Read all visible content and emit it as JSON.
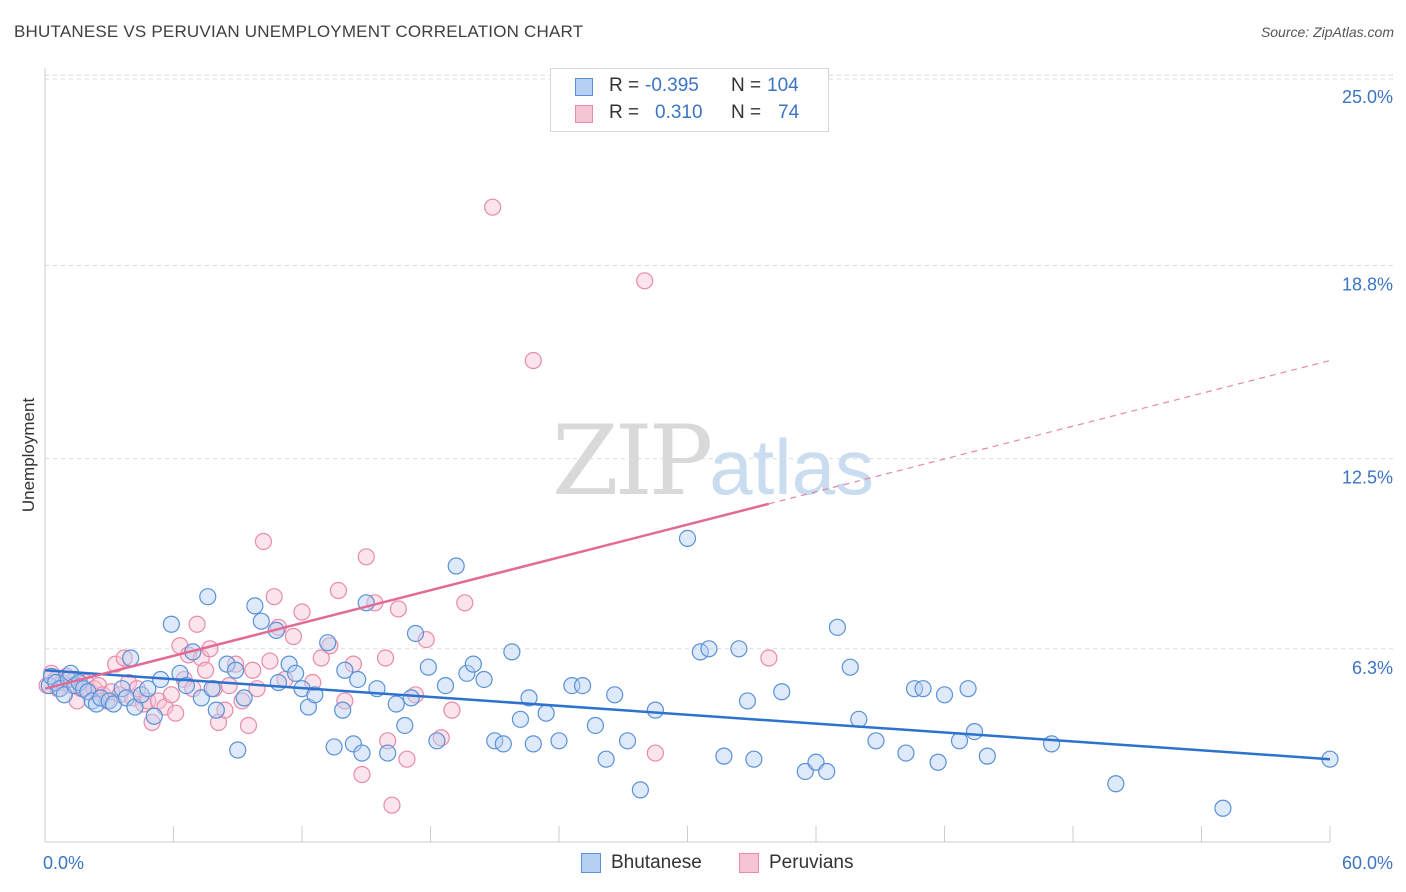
{
  "title": "BHUTANESE VS PERUVIAN UNEMPLOYMENT CORRELATION CHART",
  "source": "Source: ZipAtlas.com",
  "watermark": {
    "zip": "ZIP",
    "atlas": "atlas"
  },
  "legend": {
    "rows": [
      {
        "r_label": "R =",
        "r_value": "-0.395",
        "n_label": "N =",
        "n_value": "104"
      },
      {
        "r_label": "R =",
        "r_value": "0.310",
        "n_label": "N =",
        "n_value": "74"
      }
    ]
  },
  "bottom_legend": [
    "Bhutanese",
    "Peruvians"
  ],
  "colors": {
    "blue_fill": "#b5d0f2",
    "blue_stroke": "#5a91d8",
    "blue_line": "#2d72cc",
    "pink_fill": "#f7c4d4",
    "pink_stroke": "#e98aab",
    "pink_line": "#e36a94",
    "grid": "#dcdcdc",
    "tick_text": "#3b74c4"
  },
  "chart_data": {
    "type": "scatter",
    "title": "BHUTANESE VS PERUVIAN UNEMPLOYMENT CORRELATION CHART",
    "xlabel": "",
    "ylabel": "Unemployment",
    "xlim": [
      0,
      60
    ],
    "ylim": [
      0,
      25.5
    ],
    "x_tick_labels": [
      "0.0%",
      "60.0%"
    ],
    "y_ticks": [
      6.3,
      12.5,
      18.8,
      25.0
    ],
    "y_tick_labels": [
      "6.3%",
      "12.5%",
      "18.8%",
      "25.0%"
    ],
    "grid": "horizontal dashed",
    "legend_position": "top-center",
    "series": [
      {
        "name": "Bhutanese",
        "r": -0.395,
        "n": 104,
        "trend": {
          "x": [
            0,
            60
          ],
          "y": [
            5.6,
            2.7
          ],
          "dashed_from": null
        },
        "points": [
          [
            0.2,
            5.1
          ],
          [
            0.3,
            5.4
          ],
          [
            0.5,
            5.2
          ],
          [
            0.7,
            5.0
          ],
          [
            0.9,
            4.8
          ],
          [
            1.1,
            5.3
          ],
          [
            1.2,
            5.5
          ],
          [
            1.4,
            5.1
          ],
          [
            1.6,
            5.2
          ],
          [
            1.8,
            5.0
          ],
          [
            2.0,
            4.9
          ],
          [
            2.2,
            4.6
          ],
          [
            2.4,
            4.5
          ],
          [
            2.6,
            4.7
          ],
          [
            3.0,
            4.6
          ],
          [
            3.2,
            4.5
          ],
          [
            3.6,
            5.0
          ],
          [
            3.8,
            4.7
          ],
          [
            4.0,
            6.0
          ],
          [
            4.2,
            4.4
          ],
          [
            4.5,
            4.8
          ],
          [
            4.8,
            5.0
          ],
          [
            5.1,
            4.1
          ],
          [
            5.4,
            5.3
          ],
          [
            5.9,
            7.1
          ],
          [
            6.3,
            5.5
          ],
          [
            6.6,
            5.1
          ],
          [
            6.9,
            6.2
          ],
          [
            7.3,
            4.7
          ],
          [
            7.6,
            8.0
          ],
          [
            7.8,
            5.0
          ],
          [
            8.0,
            4.3
          ],
          [
            8.5,
            5.8
          ],
          [
            8.9,
            5.6
          ],
          [
            9.0,
            3.0
          ],
          [
            9.3,
            4.7
          ],
          [
            9.8,
            7.7
          ],
          [
            10.1,
            7.2
          ],
          [
            10.8,
            6.9
          ],
          [
            10.9,
            5.2
          ],
          [
            11.4,
            5.8
          ],
          [
            11.7,
            5.5
          ],
          [
            12.0,
            5.0
          ],
          [
            12.3,
            4.4
          ],
          [
            12.6,
            4.8
          ],
          [
            13.2,
            6.5
          ],
          [
            13.5,
            3.1
          ],
          [
            13.9,
            4.3
          ],
          [
            14.0,
            5.6
          ],
          [
            14.4,
            3.2
          ],
          [
            14.6,
            5.3
          ],
          [
            14.8,
            2.9
          ],
          [
            15.0,
            7.8
          ],
          [
            15.5,
            5.0
          ],
          [
            16.0,
            2.9
          ],
          [
            16.4,
            4.5
          ],
          [
            16.8,
            3.8
          ],
          [
            17.1,
            4.7
          ],
          [
            17.3,
            6.8
          ],
          [
            17.9,
            5.7
          ],
          [
            18.3,
            3.3
          ],
          [
            18.7,
            5.1
          ],
          [
            19.2,
            9.0
          ],
          [
            19.7,
            5.5
          ],
          [
            20.0,
            5.8
          ],
          [
            20.5,
            5.3
          ],
          [
            21.0,
            3.3
          ],
          [
            21.4,
            3.2
          ],
          [
            21.8,
            6.2
          ],
          [
            22.2,
            4.0
          ],
          [
            22.6,
            4.7
          ],
          [
            22.8,
            3.2
          ],
          [
            23.4,
            4.2
          ],
          [
            24.0,
            3.3
          ],
          [
            24.6,
            5.1
          ],
          [
            25.1,
            5.1
          ],
          [
            25.7,
            3.8
          ],
          [
            26.2,
            2.7
          ],
          [
            26.6,
            4.8
          ],
          [
            27.2,
            3.3
          ],
          [
            27.8,
            1.7
          ],
          [
            28.5,
            4.3
          ],
          [
            30.0,
            9.9
          ],
          [
            30.6,
            6.2
          ],
          [
            31.0,
            6.3
          ],
          [
            31.7,
            2.8
          ],
          [
            32.4,
            6.3
          ],
          [
            32.8,
            4.6
          ],
          [
            33.1,
            2.7
          ],
          [
            34.4,
            4.9
          ],
          [
            35.5,
            2.3
          ],
          [
            36.0,
            2.6
          ],
          [
            36.5,
            2.3
          ],
          [
            37.0,
            7.0
          ],
          [
            37.6,
            5.7
          ],
          [
            38.0,
            4.0
          ],
          [
            38.8,
            3.3
          ],
          [
            40.2,
            2.9
          ],
          [
            40.6,
            5.0
          ],
          [
            41.0,
            5.0
          ],
          [
            41.7,
            2.6
          ],
          [
            42.0,
            4.8
          ],
          [
            42.7,
            3.3
          ],
          [
            43.4,
            3.6
          ]
        ],
        "points_extra": [
          [
            43.1,
            5.0
          ],
          [
            44.0,
            2.8
          ],
          [
            47.0,
            3.2
          ],
          [
            50.0,
            1.9
          ],
          [
            55.0,
            1.1
          ],
          [
            60.0,
            2.7
          ]
        ]
      },
      {
        "name": "Peruvians",
        "r": 0.31,
        "n": 74,
        "trend": {
          "x": [
            0,
            60
          ],
          "y": [
            5.0,
            15.7
          ],
          "solid_until_x": 33.8
        },
        "points": [
          [
            0.1,
            5.1
          ],
          [
            0.3,
            5.5
          ],
          [
            0.5,
            5.3
          ],
          [
            0.6,
            5.0
          ],
          [
            0.8,
            5.2
          ],
          [
            1.0,
            5.4
          ],
          [
            1.2,
            5.1
          ],
          [
            1.4,
            5.3
          ],
          [
            1.5,
            4.6
          ],
          [
            1.7,
            5.0
          ],
          [
            1.9,
            5.2
          ],
          [
            2.1,
            4.9
          ],
          [
            2.3,
            5.0
          ],
          [
            2.5,
            5.1
          ],
          [
            2.7,
            4.8
          ],
          [
            2.9,
            4.6
          ],
          [
            3.1,
            4.9
          ],
          [
            3.3,
            5.8
          ],
          [
            3.5,
            4.8
          ],
          [
            3.7,
            6.0
          ],
          [
            3.9,
            5.2
          ],
          [
            4.1,
            4.7
          ],
          [
            4.3,
            5.0
          ],
          [
            4.6,
            4.5
          ],
          [
            4.8,
            4.6
          ],
          [
            5.0,
            3.9
          ],
          [
            5.3,
            4.6
          ],
          [
            5.6,
            4.4
          ],
          [
            5.9,
            4.8
          ],
          [
            6.1,
            4.2
          ],
          [
            6.3,
            6.4
          ],
          [
            6.5,
            5.3
          ],
          [
            6.7,
            6.1
          ],
          [
            6.9,
            5.0
          ],
          [
            7.1,
            7.1
          ],
          [
            7.3,
            6.0
          ],
          [
            7.5,
            5.6
          ],
          [
            7.7,
            6.3
          ],
          [
            7.9,
            5.0
          ],
          [
            8.1,
            3.9
          ],
          [
            8.4,
            4.3
          ],
          [
            8.6,
            5.1
          ],
          [
            8.9,
            5.8
          ],
          [
            9.2,
            4.6
          ],
          [
            9.5,
            3.8
          ],
          [
            9.7,
            5.6
          ],
          [
            9.9,
            5.0
          ],
          [
            10.2,
            9.8
          ],
          [
            10.5,
            5.9
          ],
          [
            10.7,
            8.0
          ],
          [
            10.9,
            7.0
          ],
          [
            11.2,
            5.3
          ],
          [
            11.6,
            6.7
          ],
          [
            12.0,
            7.5
          ],
          [
            12.5,
            5.2
          ],
          [
            12.9,
            6.0
          ],
          [
            13.3,
            6.4
          ],
          [
            13.7,
            8.2
          ],
          [
            14.0,
            4.6
          ],
          [
            14.4,
            5.8
          ],
          [
            14.8,
            2.2
          ],
          [
            15.0,
            9.3
          ],
          [
            15.4,
            7.8
          ],
          [
            15.9,
            6.0
          ],
          [
            16.2,
            1.2
          ],
          [
            16.5,
            7.6
          ],
          [
            16.9,
            2.7
          ],
          [
            17.3,
            4.8
          ],
          [
            17.8,
            6.6
          ],
          [
            18.5,
            3.4
          ],
          [
            19.0,
            4.3
          ],
          [
            19.6,
            7.8
          ],
          [
            20.9,
            20.7
          ],
          [
            22.8,
            15.7
          ]
        ],
        "points_extra": [
          [
            28.0,
            18.3
          ],
          [
            28.5,
            2.9
          ],
          [
            33.8,
            6.0
          ],
          [
            16.0,
            3.3
          ]
        ]
      }
    ]
  }
}
